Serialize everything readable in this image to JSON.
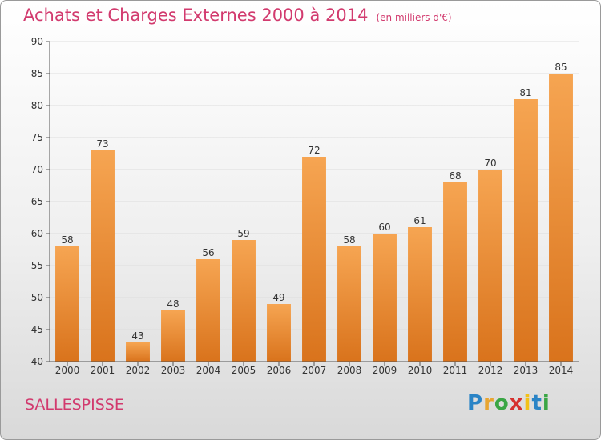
{
  "title": "Achats et Charges Externes 2000 à 2014",
  "subtitle": "(en milliers d'€)",
  "place": "SALLESPISSE",
  "brand": {
    "letters": [
      "P",
      "r",
      "o",
      "x",
      "i",
      "t",
      "i"
    ],
    "colors": [
      "#2a84c6",
      "#e8a531",
      "#3aa645",
      "#d6312e",
      "#f2c118",
      "#2a84c6",
      "#3aa645"
    ]
  },
  "colors": {
    "title": "#d23a6e",
    "bar_light": "#f6a552",
    "bar_dark": "#d9731c"
  },
  "chart_data": {
    "type": "bar",
    "categories": [
      "2000",
      "2001",
      "2002",
      "2003",
      "2004",
      "2005",
      "2006",
      "2007",
      "2008",
      "2009",
      "2010",
      "2011",
      "2012",
      "2013",
      "2014"
    ],
    "values": [
      58,
      73,
      43,
      48,
      56,
      59,
      49,
      72,
      58,
      60,
      61,
      68,
      70,
      81,
      85
    ],
    "ylim": [
      40,
      90
    ],
    "yticks": [
      40,
      45,
      50,
      55,
      60,
      65,
      70,
      75,
      80,
      85,
      90
    ],
    "grid": true,
    "title": "Achats et Charges Externes 2000 à 2014",
    "subtitle": "(en milliers d'€)"
  }
}
